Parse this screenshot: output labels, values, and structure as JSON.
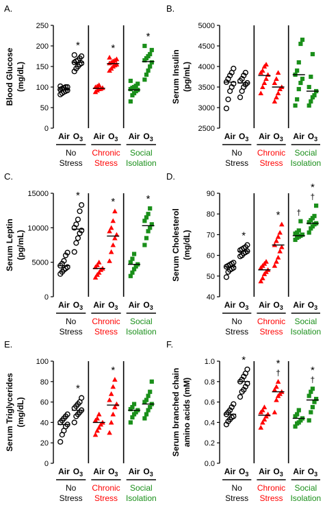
{
  "figure": {
    "groups": [
      {
        "key": "none",
        "line1": "No",
        "line2": "Stress",
        "color": "#000000",
        "marker": "circle"
      },
      {
        "key": "chronic",
        "line1": "Chronic",
        "line2": "Stress",
        "color": "#ff0000",
        "marker": "triangle"
      },
      {
        "key": "social",
        "line1": "Social",
        "line2": "Isolation",
        "color": "#1a8f1a",
        "marker": "square"
      }
    ],
    "exposure_labels": {
      "air": "Air",
      "o3_base": "O",
      "o3_sub": "3"
    },
    "colors": {
      "none": "#000000",
      "chronic": "#ff0000",
      "social": "#1a8f1a"
    }
  },
  "chart_data": [
    {
      "panel": "A.",
      "type": "scatter",
      "ylabel": "Blood Glucose (mg/dL)",
      "ylabel_lines": [
        "Blood Glucose",
        "(mg/dL)"
      ],
      "ylim": [
        0,
        250
      ],
      "yticks": [
        0,
        50,
        100,
        150,
        200,
        250
      ],
      "ytick_labels": [
        "0",
        "50",
        "100",
        "150",
        "200",
        "250"
      ],
      "groups": [
        {
          "stress": "No Stress",
          "air": [
            82,
            85,
            88,
            90,
            92,
            94,
            96,
            98,
            100,
            100,
            102
          ],
          "o3": [
            138,
            145,
            150,
            155,
            158,
            160,
            163,
            165,
            170,
            175,
            178
          ],
          "air_mean": 93,
          "o3_mean": 160,
          "air_mark": "",
          "o3_mark": "*"
        },
        {
          "stress": "Chronic Stress",
          "air": [
            88,
            92,
            95,
            96,
            98,
            100,
            102,
            105
          ],
          "o3": [
            140,
            145,
            150,
            153,
            155,
            158,
            160,
            163,
            165,
            168,
            172
          ],
          "air_mean": 97,
          "o3_mean": 157,
          "air_mark": "",
          "o3_mark": "*"
        },
        {
          "stress": "Social Isolation",
          "air": [
            65,
            80,
            85,
            90,
            93,
            95,
            98,
            100,
            103,
            108,
            115
          ],
          "o3": [
            118,
            130,
            140,
            150,
            160,
            165,
            170,
            175,
            180,
            190,
            200
          ],
          "air_mean": 93,
          "o3_mean": 162,
          "air_mark": "",
          "o3_mark": "*"
        }
      ]
    },
    {
      "panel": "B.",
      "type": "scatter",
      "ylabel": "Serum Insulin (pg/mL)",
      "ylabel_lines": [
        "Serum Insulin",
        "(pg/mL)"
      ],
      "ylim": [
        2500,
        5000
      ],
      "yticks": [
        2500,
        3000,
        3500,
        4000,
        4500,
        5000
      ],
      "ytick_labels": [
        "2500",
        "3000",
        "3500",
        "4000",
        "4500",
        "5000"
      ],
      "groups": [
        {
          "stress": "No Stress",
          "air": [
            2980,
            3200,
            3400,
            3500,
            3580,
            3620,
            3700,
            3780,
            3850,
            3950
          ],
          "o3": [
            3250,
            3400,
            3500,
            3560,
            3600,
            3650,
            3700,
            3780,
            3850
          ],
          "air_mean": 3620,
          "o3_mean": 3600,
          "air_mark": "",
          "o3_mark": ""
        },
        {
          "stress": "Chronic Stress",
          "air": [
            3350,
            3500,
            3600,
            3700,
            3800,
            3850,
            3900,
            4000,
            4050
          ],
          "o3": [
            3150,
            3250,
            3350,
            3450,
            3500,
            3600,
            3700,
            3850
          ],
          "air_mean": 3780,
          "o3_mean": 3500,
          "air_mark": "",
          "o3_mark": ""
        },
        {
          "stress": "Social Isolation",
          "air": [
            3050,
            3200,
            3450,
            3600,
            3700,
            3800,
            3900,
            4100,
            4550,
            4650
          ],
          "o3": [
            3050,
            3150,
            3250,
            3300,
            3400,
            3500,
            3750,
            4300
          ],
          "air_mean": 3800,
          "o3_mean": 3400,
          "air_mark": "",
          "o3_mark": ""
        }
      ]
    },
    {
      "panel": "C.",
      "type": "scatter",
      "ylabel": "Serum Leptin (pg/mL)",
      "ylabel_lines": [
        "Serum Leptin",
        "(pg/mL)"
      ],
      "ylim": [
        0,
        15000
      ],
      "yticks": [
        0,
        5000,
        10000,
        15000
      ],
      "ytick_labels": [
        "0",
        "5000",
        "10000",
        "15000"
      ],
      "groups": [
        {
          "stress": "No Stress",
          "air": [
            3300,
            3600,
            3900,
            4100,
            4300,
            4500,
            4800,
            5200,
            6000,
            6400
          ],
          "o3": [
            6500,
            7800,
            8500,
            9200,
            9600,
            10000,
            10500,
            11200,
            12400,
            13300
          ],
          "air_mean": 4500,
          "o3_mean": 9800,
          "air_mark": "",
          "o3_mark": "*"
        },
        {
          "stress": "Chronic Stress",
          "air": [
            2800,
            3200,
            3500,
            3900,
            4100,
            4300,
            4600,
            5000
          ],
          "o3": [
            5200,
            6500,
            7500,
            8500,
            9000,
            9500,
            10000,
            11000,
            12400
          ],
          "air_mean": 4100,
          "o3_mean": 8800,
          "air_mark": "",
          "o3_mark": "*"
        },
        {
          "stress": "Social Isolation",
          "air": [
            3000,
            3500,
            4000,
            4400,
            4700,
            5000,
            5500,
            6200
          ],
          "o3": [
            7500,
            8500,
            9500,
            10000,
            10500,
            11000,
            11500,
            12000,
            12800
          ],
          "air_mean": 4700,
          "o3_mean": 10300,
          "air_mark": "",
          "o3_mark": "*"
        }
      ]
    },
    {
      "panel": "D.",
      "type": "scatter",
      "ylabel": "Serum Cholesterol (mg/dL)",
      "ylabel_lines": [
        "Serum Cholesterol",
        "(mg/dL)"
      ],
      "ylim": [
        40,
        90
      ],
      "yticks": [
        40,
        50,
        60,
        70,
        80,
        90
      ],
      "ytick_labels": [
        "40",
        "50",
        "60",
        "70",
        "80",
        "90"
      ],
      "groups": [
        {
          "stress": "No Stress",
          "air": [
            49.5,
            52,
            53,
            53.5,
            54,
            54.5,
            55,
            55.5,
            56,
            56.5
          ],
          "o3": [
            59.5,
            60,
            61,
            61.5,
            62,
            62.5,
            63,
            63.5,
            64,
            65
          ],
          "air_mean": 54.5,
          "o3_mean": 62,
          "air_mark": "",
          "o3_mark": "*"
        },
        {
          "stress": "Chronic Stress",
          "air": [
            47.5,
            49,
            51,
            52,
            53,
            54,
            55,
            56,
            57
          ],
          "o3": [
            55,
            57,
            59,
            62,
            64,
            65,
            67,
            69,
            71,
            75
          ],
          "air_mean": 53,
          "o3_mean": 65,
          "air_mark": "",
          "o3_mark": "*"
        },
        {
          "stress": "Social Isolation",
          "air": [
            67.5,
            68.5,
            69,
            69.5,
            70,
            70.5,
            71,
            72,
            76.5
          ],
          "o3": [
            71,
            73,
            74,
            75,
            75.5,
            76,
            77,
            78,
            79,
            84
          ],
          "air_mean": 69.5,
          "o3_mean": 75.5,
          "air_mark": "†",
          "o3_mark": "*†"
        }
      ]
    },
    {
      "panel": "E.",
      "type": "scatter",
      "ylabel": "Serum Triglycerides (mg/dL)",
      "ylabel_lines": [
        "Serum Triglycerides",
        "(mg/dL)"
      ],
      "ylim": [
        0,
        100
      ],
      "yticks": [
        0,
        20,
        40,
        60,
        80,
        100
      ],
      "ytick_labels": [
        "0",
        "20",
        "40",
        "60",
        "80",
        "100"
      ],
      "groups": [
        {
          "stress": "No Stress",
          "air": [
            21,
            28,
            32,
            36,
            38,
            40,
            42,
            44,
            46,
            48
          ],
          "o3": [
            40,
            46,
            48,
            50,
            52,
            54,
            56,
            58,
            60,
            64
          ],
          "air_mean": 38,
          "o3_mean": 52,
          "air_mark": "",
          "o3_mark": "*"
        },
        {
          "stress": "Chronic Stress",
          "air": [
            28,
            32,
            35,
            38,
            40,
            42,
            44,
            48
          ],
          "o3": [
            30,
            40,
            48,
            55,
            58,
            62,
            68,
            75,
            82
          ],
          "air_mean": 40,
          "o3_mean": 57,
          "air_mark": "",
          "o3_mark": "*"
        },
        {
          "stress": "Social Isolation",
          "air": [
            40,
            45,
            48,
            50,
            52,
            53,
            55,
            58
          ],
          "o3": [
            44,
            48,
            52,
            55,
            58,
            60,
            62,
            66,
            70,
            80
          ],
          "air_mean": 52,
          "o3_mean": 58,
          "air_mark": "",
          "o3_mark": ""
        }
      ]
    },
    {
      "panel": "F.",
      "type": "scatter",
      "ylabel": "Serum branched chain amino acids (mM)",
      "ylabel_lines": [
        "Serum branched chain",
        "amino acids (mM)"
      ],
      "ylim": [
        0,
        1.0
      ],
      "yticks": [
        0,
        0.2,
        0.4,
        0.6,
        0.8,
        1.0
      ],
      "ytick_labels": [
        "0.0",
        "0.2",
        "0.4",
        "0.6",
        "0.8",
        "1.0"
      ],
      "groups": [
        {
          "stress": "No Stress",
          "air": [
            0.38,
            0.41,
            0.43,
            0.45,
            0.46,
            0.48,
            0.5,
            0.52,
            0.55,
            0.58
          ],
          "o3": [
            0.65,
            0.7,
            0.72,
            0.75,
            0.78,
            0.8,
            0.82,
            0.85,
            0.88,
            0.92
          ],
          "air_mean": 0.48,
          "o3_mean": 0.8,
          "air_mark": "",
          "o3_mark": "*"
        },
        {
          "stress": "Chronic Stress",
          "air": [
            0.35,
            0.4,
            0.43,
            0.46,
            0.48,
            0.5,
            0.52,
            0.55
          ],
          "o3": [
            0.5,
            0.62,
            0.66,
            0.68,
            0.7,
            0.72,
            0.75,
            0.8
          ],
          "air_mean": 0.47,
          "o3_mean": 0.7,
          "air_mark": "",
          "o3_mark": "*†"
        },
        {
          "stress": "Social Isolation",
          "air": [
            0.36,
            0.39,
            0.4,
            0.42,
            0.44,
            0.46,
            0.48,
            0.52
          ],
          "o3": [
            0.42,
            0.5,
            0.55,
            0.6,
            0.63,
            0.66,
            0.7,
            0.73
          ],
          "air_mean": 0.44,
          "o3_mean": 0.62,
          "air_mark": "",
          "o3_mark": "*†"
        }
      ]
    }
  ]
}
